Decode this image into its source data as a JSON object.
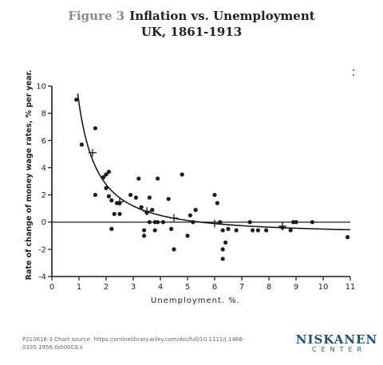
{
  "header": {
    "figure_label": "Figure 3",
    "title": "Inflation vs. Unemployment",
    "subtitle": "UK, 1861-1913"
  },
  "footer": {
    "source": "P210616-3 Chart source:  https://onlinelibrary.wiley.com/doi/full/10.1111/j.1468-0335.1958.tb00003.x"
  },
  "logo": {
    "main": "NISKANEN",
    "sub": "CENTER"
  },
  "chart_data": {
    "type": "scatter",
    "title": "",
    "xlabel": "Unemployment.   %.",
    "ylabel": "Rate of change of money wage rates, % per year.",
    "xlim": [
      0,
      11
    ],
    "ylim": [
      -4,
      10
    ],
    "x_ticks": [
      0,
      1,
      2,
      3,
      4,
      5,
      6,
      7,
      8,
      9,
      10,
      11
    ],
    "y_ticks": [
      -4,
      -2,
      0,
      2,
      4,
      6,
      8,
      10
    ],
    "points": [
      {
        "x": 0.9,
        "y": 9.0
      },
      {
        "x": 1.1,
        "y": 5.7
      },
      {
        "x": 1.6,
        "y": 6.9
      },
      {
        "x": 1.6,
        "y": 2.0
      },
      {
        "x": 1.9,
        "y": 3.3
      },
      {
        "x": 2.0,
        "y": 3.5
      },
      {
        "x": 2.0,
        "y": 2.5
      },
      {
        "x": 2.1,
        "y": 3.7
      },
      {
        "x": 2.1,
        "y": 1.9
      },
      {
        "x": 2.2,
        "y": 1.6
      },
      {
        "x": 2.2,
        "y": -0.5
      },
      {
        "x": 2.3,
        "y": 0.6
      },
      {
        "x": 2.4,
        "y": 1.4
      },
      {
        "x": 2.5,
        "y": 1.4
      },
      {
        "x": 2.5,
        "y": 0.6
      },
      {
        "x": 2.9,
        "y": 2.0
      },
      {
        "x": 3.1,
        "y": 1.8
      },
      {
        "x": 3.2,
        "y": 3.2
      },
      {
        "x": 3.3,
        "y": 1.1
      },
      {
        "x": 3.4,
        "y": -1.0
      },
      {
        "x": 3.4,
        "y": -0.6
      },
      {
        "x": 3.5,
        "y": 0.7
      },
      {
        "x": 3.6,
        "y": 1.8
      },
      {
        "x": 3.6,
        "y": 0.0
      },
      {
        "x": 3.7,
        "y": 0.9
      },
      {
        "x": 3.8,
        "y": 0.0
      },
      {
        "x": 3.8,
        "y": -0.6
      },
      {
        "x": 3.9,
        "y": 3.2
      },
      {
        "x": 3.9,
        "y": 0.0
      },
      {
        "x": 4.1,
        "y": 0.0
      },
      {
        "x": 4.3,
        "y": 1.7
      },
      {
        "x": 4.4,
        "y": -0.5
      },
      {
        "x": 4.5,
        "y": -2.0
      },
      {
        "x": 4.8,
        "y": 3.5
      },
      {
        "x": 5.0,
        "y": -1.0
      },
      {
        "x": 5.1,
        "y": 0.5
      },
      {
        "x": 5.2,
        "y": 0.0
      },
      {
        "x": 5.3,
        "y": 0.9
      },
      {
        "x": 6.0,
        "y": 2.0
      },
      {
        "x": 6.1,
        "y": 1.4
      },
      {
        "x": 6.2,
        "y": 0.0
      },
      {
        "x": 6.3,
        "y": -0.6
      },
      {
        "x": 6.3,
        "y": -2.0
      },
      {
        "x": 6.3,
        "y": -2.7
      },
      {
        "x": 6.4,
        "y": -1.5
      },
      {
        "x": 6.5,
        "y": -0.5
      },
      {
        "x": 6.8,
        "y": -0.6
      },
      {
        "x": 7.3,
        "y": 0.0
      },
      {
        "x": 7.4,
        "y": -0.6
      },
      {
        "x": 7.6,
        "y": -0.6
      },
      {
        "x": 7.9,
        "y": -0.6
      },
      {
        "x": 8.5,
        "y": -0.4
      },
      {
        "x": 8.8,
        "y": -0.6
      },
      {
        "x": 8.9,
        "y": 0.0
      },
      {
        "x": 9.0,
        "y": 0.0
      },
      {
        "x": 9.6,
        "y": 0.0
      },
      {
        "x": 10.9,
        "y": -1.1
      }
    ],
    "mean_markers": [
      {
        "x": 1.5,
        "y": 5.1
      },
      {
        "x": 2.5,
        "y": 1.5
      },
      {
        "x": 3.5,
        "y": 0.8
      },
      {
        "x": 4.5,
        "y": 0.3
      },
      {
        "x": 6.0,
        "y": -0.1
      },
      {
        "x": 8.5,
        "y": -0.3
      }
    ],
    "fitted_curve": {
      "equation": "y + 0.9 = 9.638 * x^-1.394",
      "a": 9.638,
      "b": -1.394,
      "c": -0.9,
      "x_range": [
        0.95,
        11
      ]
    },
    "grid": false,
    "legend": "none",
    "colors": {
      "ink": "#1a1a1a"
    }
  }
}
